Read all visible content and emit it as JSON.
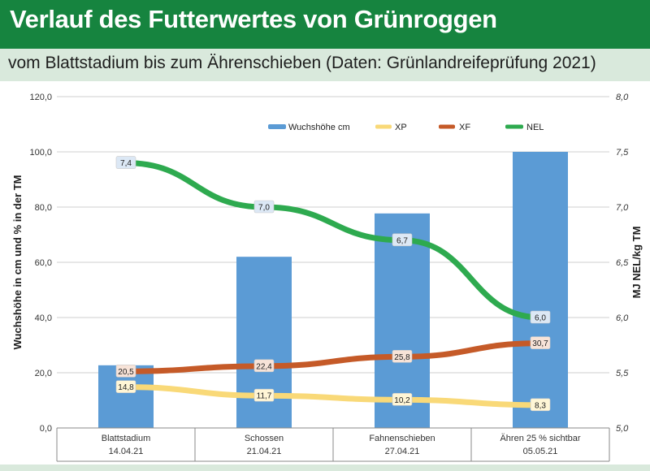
{
  "header": {
    "title": "Verlauf des Futterwertes von Grünroggen",
    "subtitle": "vom Blattstadium bis zum Ährenschieben (Daten: Grünlandreifeprüfung 2021)"
  },
  "colors": {
    "header_bg": "#16843f",
    "subheader_bg": "#d9e9dc",
    "bar": "#5b9bd5",
    "xp": "#f9d978",
    "xf": "#c55a28",
    "nel": "#2eaa4f"
  },
  "chart_data": {
    "type": "bar",
    "categories": [
      {
        "name": "Blattstadium",
        "date": "14.04.21"
      },
      {
        "name": "Schossen",
        "date": "21.04.21"
      },
      {
        "name": "Fahnenschieben",
        "date": "27.04.21"
      },
      {
        "name": "Ähren 25 % sichtbar",
        "date": "05.05.21"
      }
    ],
    "ylabel_left": "Wuchshöhe in cm und % in der TM",
    "ylabel_right": "MJ NEL/kg TM",
    "ylim_left": [
      0,
      120
    ],
    "ylim_right": [
      5.0,
      8.0
    ],
    "yticks_left": [
      "0,0",
      "20,0",
      "40,0",
      "60,0",
      "80,0",
      "100,0",
      "120,0"
    ],
    "yticks_right": [
      "5,0",
      "5,5",
      "6,0",
      "6,5",
      "7,0",
      "7,5",
      "8,0"
    ],
    "grid": true,
    "legend_position": "top-right",
    "series": [
      {
        "name": "Wuchshöhe cm",
        "type": "bar",
        "axis": "left",
        "values": [
          22.7,
          62,
          77.7,
          100
        ],
        "labels": null
      },
      {
        "name": "XP",
        "type": "line",
        "axis": "left",
        "values": [
          14.8,
          11.7,
          10.2,
          8.3
        ],
        "labels": [
          "14,8",
          "11,7",
          "10,2",
          "8,3"
        ]
      },
      {
        "name": "XF",
        "type": "line",
        "axis": "left",
        "values": [
          20.5,
          22.4,
          25.8,
          30.7
        ],
        "labels": [
          "20,5",
          "22,4",
          "25,8",
          "30,7"
        ]
      },
      {
        "name": "NEL",
        "type": "line",
        "axis": "right",
        "values": [
          7.4,
          7.0,
          6.7,
          6.0
        ],
        "labels": [
          "7,4",
          "7,0",
          "6,7",
          "6,0"
        ]
      }
    ]
  }
}
